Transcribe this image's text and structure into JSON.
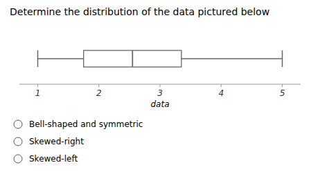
{
  "chart_data": {
    "type": "box",
    "orientation": "horizontal",
    "title": "Determine the distribution of the data pictured below",
    "x_label": "data",
    "whisker_low": 1.0,
    "q1": 1.75,
    "median": 2.55,
    "q3": 3.35,
    "whisker_high": 5.0,
    "xlim": [
      0.7,
      5.3
    ],
    "xticks": [
      1,
      2,
      3,
      4,
      5
    ],
    "color": "#666666",
    "annotations": [
      "Bell-shaped and symmetric",
      "Skewed-right",
      "Skewed-left"
    ]
  }
}
